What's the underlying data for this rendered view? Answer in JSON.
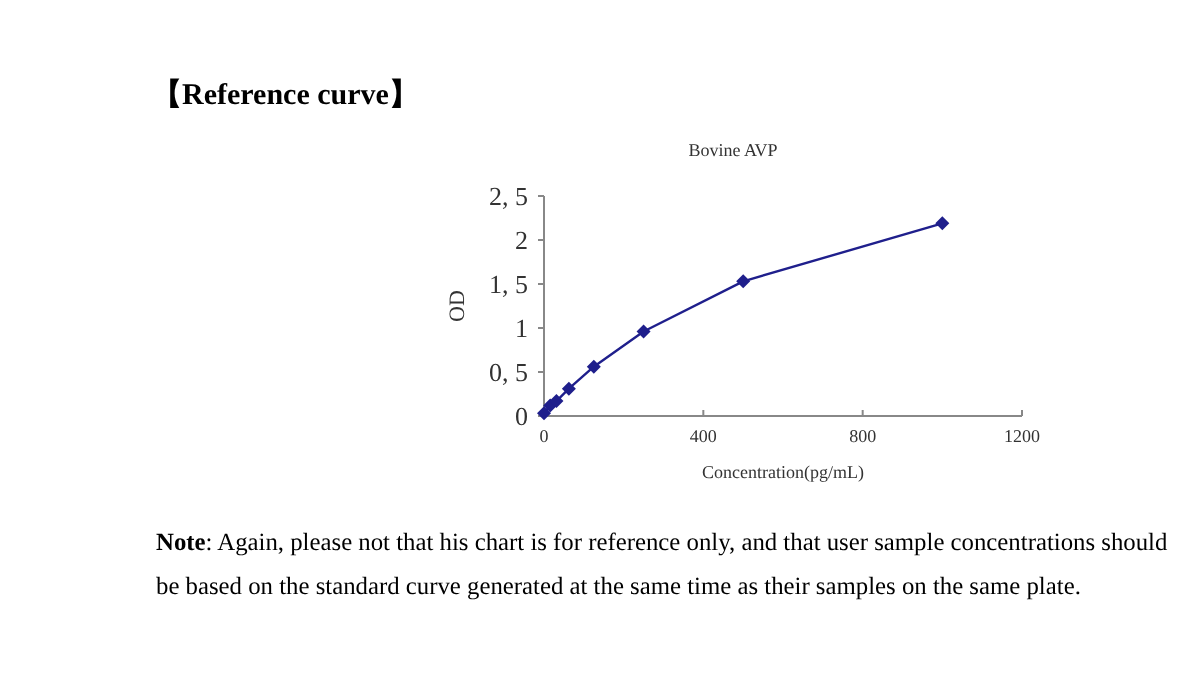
{
  "chart_data": {
    "type": "line",
    "title": "【Reference curve】",
    "subtitle": "Bovine AVP",
    "xlabel": "Concentration(pg/mL)",
    "ylabel": "OD",
    "x": [
      0,
      15.6,
      31.25,
      62.5,
      125,
      250,
      500,
      1000
    ],
    "series": [
      {
        "color": "#1f1f8c",
        "values": [
          0.03,
          0.12,
          0.17,
          0.31,
          0.56,
          0.96,
          1.53,
          2.19
        ]
      }
    ],
    "xlim": [
      0,
      1200
    ],
    "ylim": [
      0,
      2.5
    ],
    "xticks": [
      0,
      400,
      800,
      1200
    ],
    "yticks": [
      0,
      {
        "value": 0.5,
        "label": "0, 5"
      },
      1,
      {
        "value": 1.5,
        "label": "1, 5"
      },
      2,
      {
        "value": 2.5,
        "label": "2, 5"
      }
    ],
    "grid": false,
    "marker": "diamond",
    "annotations": [
      "Note: Again, please not that his chart is for reference only, and that user sample concentrations should be based on the standard curve generated at the same time as their samples on the same plate."
    ]
  }
}
